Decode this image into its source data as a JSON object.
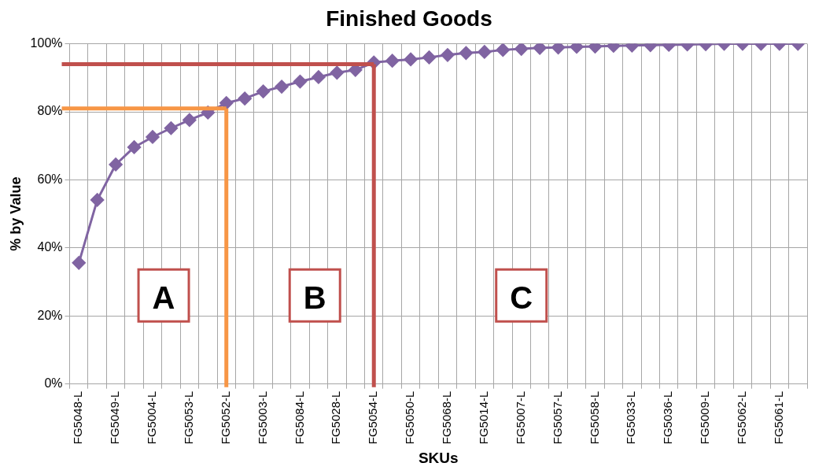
{
  "chart_data": {
    "type": "line",
    "title": "Finished Goods",
    "xlabel": "SKUs",
    "ylabel": "% by Value",
    "categories": [
      "FG5048-L",
      null,
      "FG5049-L",
      null,
      "FG5004-L",
      null,
      "FG5053-L",
      null,
      "FG5052-L",
      null,
      "FG5003-L",
      null,
      "FG5084-L",
      null,
      "FG5028-L",
      null,
      "FG5054-L",
      null,
      "FG5050-L",
      null,
      "FG5068-L",
      null,
      "FG5014-L",
      null,
      "FG5007-L",
      null,
      "FG5057-L",
      null,
      "FG5058-L",
      null,
      "FG5033-L",
      null,
      "FG5036-L",
      null,
      "FG5009-L",
      null,
      "FG5062-L",
      null,
      "FG5061-L",
      null
    ],
    "series": [
      {
        "color": "#8064a2",
        "values": [
          35.6,
          54.1,
          64.5,
          69.6,
          72.6,
          75.2,
          77.6,
          79.8,
          82.6,
          83.9,
          86.0,
          87.4,
          88.9,
          90.2,
          91.5,
          92.3,
          94.5,
          95.0,
          95.4,
          96.0,
          96.7,
          97.3,
          97.6,
          98.2,
          98.5,
          98.8,
          98.9,
          99.1,
          99.2,
          99.4,
          99.5,
          99.6,
          99.7,
          99.8,
          99.9,
          100,
          100,
          100,
          100,
          100
        ]
      }
    ],
    "ylim": [
      0,
      100
    ],
    "yticks": [
      {
        "value": 0,
        "label": "0%"
      },
      {
        "value": 20,
        "label": "20%"
      },
      {
        "value": 40,
        "label": "40%"
      },
      {
        "value": 60,
        "label": "60%"
      },
      {
        "value": 80,
        "label": "80%"
      },
      {
        "value": 100,
        "label": "100%"
      }
    ],
    "grid": true,
    "marker": "diamond",
    "ref_lines": [
      {
        "axis": "y",
        "value": 81,
        "color": "#f79646"
      },
      {
        "axis": "x",
        "value": "FG5052-L",
        "color": "#f79646"
      },
      {
        "axis": "y",
        "value": 94,
        "color": "#c0504d"
      },
      {
        "axis": "x",
        "value": "FG5054-L",
        "color": "#c0504d"
      }
    ],
    "annotations": [
      "A",
      "B",
      "C"
    ]
  }
}
